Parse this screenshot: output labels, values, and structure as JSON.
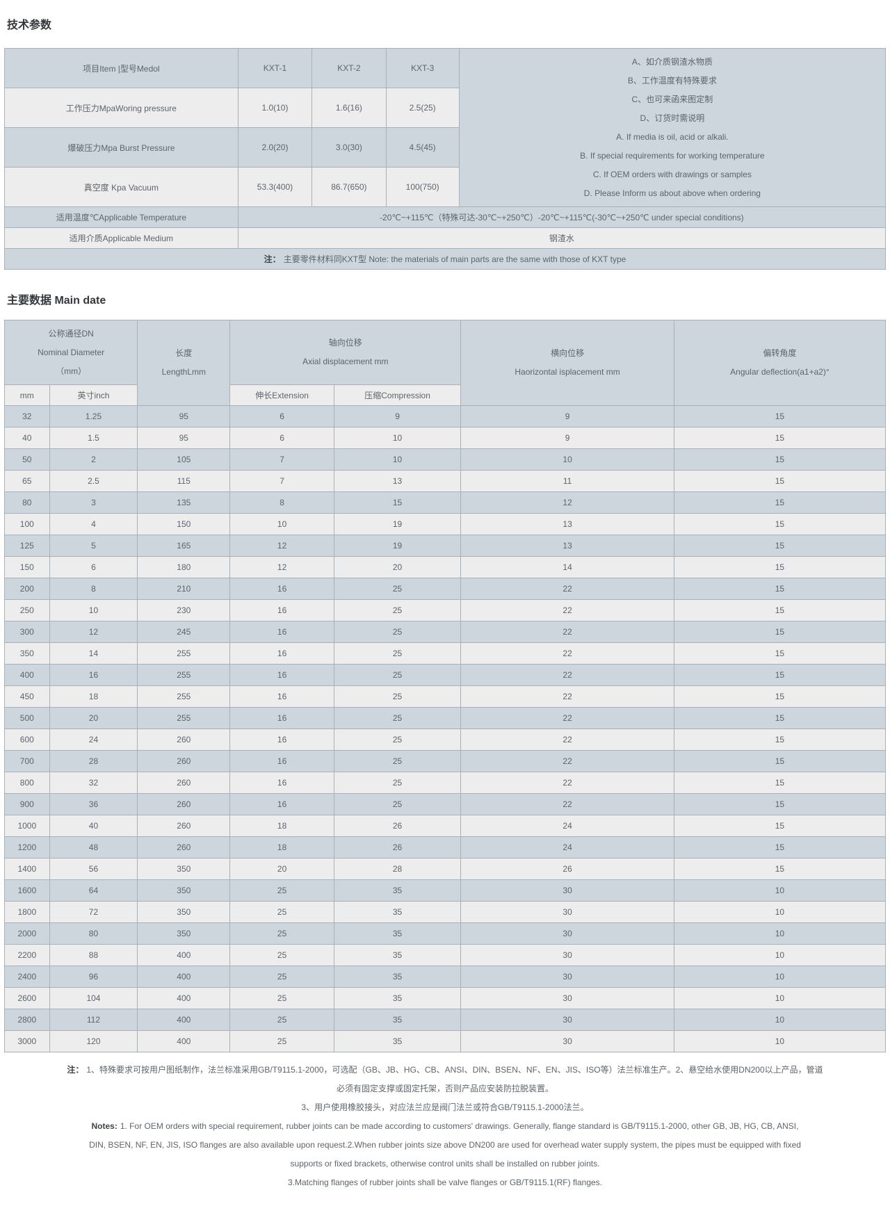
{
  "colors": {
    "row_blue": "#cdd6dd",
    "row_light": "#ededee",
    "border": "#a9b1b8",
    "heading_text": "#33383d",
    "body_text": "#5d646b"
  },
  "section1": {
    "heading": "技术参数",
    "table": {
      "item_header": "项目Item |型号Medol",
      "models": [
        "KXT-1",
        "KXT-2",
        "KXT-3"
      ],
      "rows": [
        {
          "label": "工作压力MpaWoring pressure",
          "values": [
            "1.0(10)",
            "1.6(16)",
            "2.5(25)"
          ]
        },
        {
          "label": "爆破压力Mpa Burst Pressure",
          "values": [
            "2.0(20)",
            "3.0(30)",
            "4.5(45)"
          ]
        },
        {
          "label": "真空度 Kpa Vacuum",
          "values": [
            "53.3(400)",
            "86.7(650)",
            "100(750)"
          ]
        }
      ],
      "side_note_lines": [
        "A、如介质钢渣水物质",
        "B、工作温度有特殊要求",
        "C、也可来函来图定制",
        "D、订货时需说明",
        "A. If media is oil, acid or alkali.",
        "B. If special requirements for working temperature",
        "C. If OEM orders with drawings or samples",
        "D. Please Inform us about above when ordering"
      ],
      "temperature_label": "适用温度℃Applicable Temperature",
      "temperature_value": "-20℃~+115℃（特殊可达-30℃~+250℃）-20℃~+115℃(-30℃~+250℃ under special conditions)",
      "medium_label": "适用介质Applicable Medium",
      "medium_value": "钢渣水",
      "note_prefix": "注：",
      "note_text": "主要零件材料同KXT型 Note: the materials of main parts are the same with those of KXT type"
    }
  },
  "section2": {
    "heading": "主要数据 Main date",
    "table": {
      "headers": {
        "dn": [
          "公称通径DN",
          "Nominal Diameter",
          "（mm）"
        ],
        "length": [
          "长度",
          "LengthLmm"
        ],
        "axial": [
          "轴向位移",
          "Axial displacement mm"
        ],
        "lateral": [
          "横向位移",
          "Haorizontal isplacement mm"
        ],
        "angular": [
          "偏转角度",
          "Angular deflection(a1+a2)°"
        ],
        "sub": [
          "mm",
          "英寸inch",
          "伸长Extension",
          "压缩Compression"
        ]
      },
      "rows": [
        [
          "32",
          "1.25",
          "95",
          "6",
          "9",
          "9",
          "15"
        ],
        [
          "40",
          "1.5",
          "95",
          "6",
          "10",
          "9",
          "15"
        ],
        [
          "50",
          "2",
          "105",
          "7",
          "10",
          "10",
          "15"
        ],
        [
          "65",
          "2.5",
          "115",
          "7",
          "13",
          "11",
          "15"
        ],
        [
          "80",
          "3",
          "135",
          "8",
          "15",
          "12",
          "15"
        ],
        [
          "100",
          "4",
          "150",
          "10",
          "19",
          "13",
          "15"
        ],
        [
          "125",
          "5",
          "165",
          "12",
          "19",
          "13",
          "15"
        ],
        [
          "150",
          "6",
          "180",
          "12",
          "20",
          "14",
          "15"
        ],
        [
          "200",
          "8",
          "210",
          "16",
          "25",
          "22",
          "15"
        ],
        [
          "250",
          "10",
          "230",
          "16",
          "25",
          "22",
          "15"
        ],
        [
          "300",
          "12",
          "245",
          "16",
          "25",
          "22",
          "15"
        ],
        [
          "350",
          "14",
          "255",
          "16",
          "25",
          "22",
          "15"
        ],
        [
          "400",
          "16",
          "255",
          "16",
          "25",
          "22",
          "15"
        ],
        [
          "450",
          "18",
          "255",
          "16",
          "25",
          "22",
          "15"
        ],
        [
          "500",
          "20",
          "255",
          "16",
          "25",
          "22",
          "15"
        ],
        [
          "600",
          "24",
          "260",
          "16",
          "25",
          "22",
          "15"
        ],
        [
          "700",
          "28",
          "260",
          "16",
          "25",
          "22",
          "15"
        ],
        [
          "800",
          "32",
          "260",
          "16",
          "25",
          "22",
          "15"
        ],
        [
          "900",
          "36",
          "260",
          "16",
          "25",
          "22",
          "15"
        ],
        [
          "1000",
          "40",
          "260",
          "18",
          "26",
          "24",
          "15"
        ],
        [
          "1200",
          "48",
          "260",
          "18",
          "26",
          "24",
          "15"
        ],
        [
          "1400",
          "56",
          "350",
          "20",
          "28",
          "26",
          "15"
        ],
        [
          "1600",
          "64",
          "350",
          "25",
          "35",
          "30",
          "10"
        ],
        [
          "1800",
          "72",
          "350",
          "25",
          "35",
          "30",
          "10"
        ],
        [
          "2000",
          "80",
          "350",
          "25",
          "35",
          "30",
          "10"
        ],
        [
          "2200",
          "88",
          "400",
          "25",
          "35",
          "30",
          "10"
        ],
        [
          "2400",
          "96",
          "400",
          "25",
          "35",
          "30",
          "10"
        ],
        [
          "2600",
          "104",
          "400",
          "25",
          "35",
          "30",
          "10"
        ],
        [
          "2800",
          "112",
          "400",
          "25",
          "35",
          "30",
          "10"
        ],
        [
          "3000",
          "120",
          "400",
          "25",
          "35",
          "30",
          "10"
        ]
      ]
    }
  },
  "footnotes": {
    "cn_prefix": "注：",
    "cn_lines": [
      "1、特殊要求可按用户图纸制作，法兰标准采用GB/T9115.1-2000，可选配（GB、JB、HG、CB、ANSI、DIN、BSEN、NF、EN、JIS、ISO等）法兰标准生产。2、悬空给水使用DN200以上产品，管道",
      "必须有固定支撑或固定托架，否则产品应安装防拉脱装置。",
      "3、用户使用橡胶接头，对应法兰应是阀门法兰或符合GB/T9115.1-2000法兰。"
    ],
    "en_prefix": "Notes:",
    "en_lines": [
      "1. For OEM orders with special requirement, rubber joints can be made according to customers' drawings. Generally, flange standard is GB/T9115.1-2000, other GB, JB, HG, CB, ANSI,",
      "DIN, BSEN, NF, EN, JIS, ISO flanges are also available upon request.2.When rubber joints size above DN200 are used for overhead water supply system, the pipes must be equipped with fixed",
      "supports or fixed brackets, otherwise control units shall be installed on rubber joints.",
      "3.Matching flanges of rubber joints shall be valve flanges or GB/T9115.1(RF) flanges."
    ]
  }
}
